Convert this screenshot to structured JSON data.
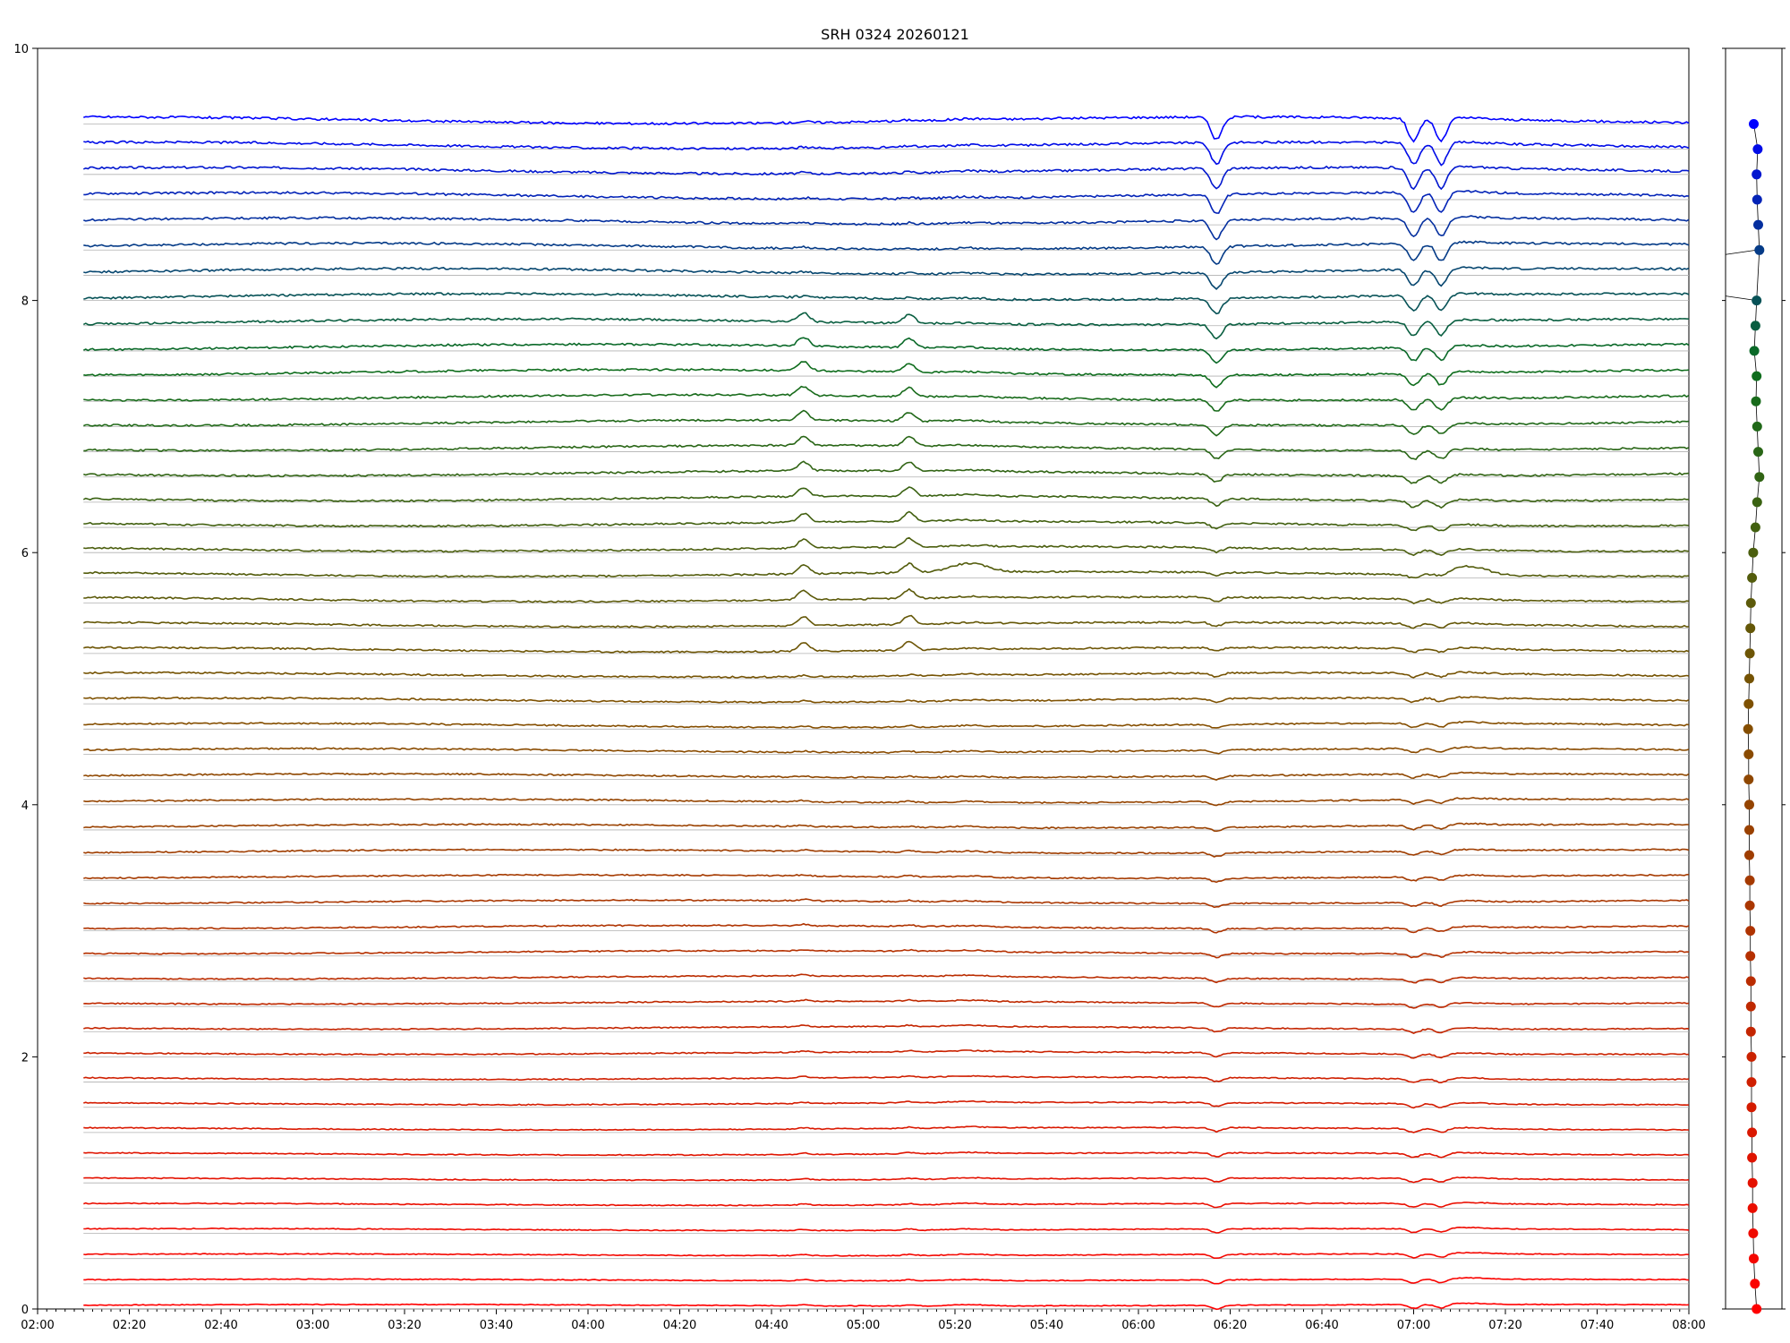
{
  "chart_data": [
    {
      "type": "line",
      "title": "SRH 0324 20260121",
      "xlabel": "",
      "ylabel": "",
      "xlim": [
        "02:00",
        "08:00"
      ],
      "ylim": [
        0,
        10
      ],
      "x_ticks": [
        "02:00",
        "02:20",
        "02:40",
        "03:00",
        "03:20",
        "03:40",
        "04:00",
        "04:20",
        "04:40",
        "05:00",
        "05:20",
        "05:40",
        "06:00",
        "06:20",
        "06:40",
        "07:00",
        "07:20",
        "07:40",
        "08:00"
      ],
      "y_ticks": [
        "0",
        "2",
        "4",
        "6",
        "8",
        "10"
      ],
      "grid": false,
      "legend": "none",
      "series_start": "02:10",
      "series_end": "08:00",
      "channel_count": 48,
      "channel_offsets": [
        0.0,
        0.2,
        0.4,
        0.6,
        0.8,
        1.0,
        1.2,
        1.4,
        1.6,
        1.8,
        2.0,
        2.2,
        2.4,
        2.6,
        2.8,
        3.0,
        3.2,
        3.4,
        3.6,
        3.8,
        4.0,
        4.2,
        4.4,
        4.6,
        4.8,
        5.0,
        5.2,
        5.4,
        5.6,
        5.8,
        6.0,
        6.2,
        6.4,
        6.6,
        6.8,
        7.0,
        7.2,
        7.4,
        7.6,
        7.8,
        8.0,
        8.2,
        8.4,
        8.6,
        8.8,
        9.0,
        9.2,
        9.4
      ],
      "color_low": "#ff0000",
      "color_high": "#0000ff",
      "baseline_color": "#b0b0b0",
      "events": [
        {
          "time": "04:47",
          "kind": "spike"
        },
        {
          "time": "05:10",
          "kind": "spike"
        },
        {
          "time": "05:23",
          "kind": "bump"
        },
        {
          "time": "06:17",
          "kind": "dip"
        },
        {
          "time": "07:00",
          "kind": "dip"
        },
        {
          "time": "07:06",
          "kind": "dip"
        },
        {
          "time": "07:12",
          "kind": "bump"
        }
      ]
    },
    {
      "type": "scatter",
      "title": "",
      "ylim": [
        0,
        10
      ],
      "y_ticks": [
        "0",
        "2",
        "4",
        "6",
        "8",
        "10"
      ],
      "points_y": [
        0.0,
        0.2,
        0.4,
        0.6,
        0.8,
        1.0,
        1.2,
        1.4,
        1.6,
        1.8,
        2.0,
        2.2,
        2.4,
        2.6,
        2.8,
        3.0,
        3.2,
        3.4,
        3.6,
        3.8,
        4.0,
        4.2,
        4.4,
        4.6,
        4.8,
        5.0,
        5.2,
        5.4,
        5.6,
        5.8,
        6.0,
        6.2,
        6.4,
        6.6,
        6.8,
        7.0,
        7.2,
        7.4,
        7.6,
        7.8,
        8.0,
        8.4,
        8.6,
        8.8,
        9.0,
        9.2,
        9.4
      ],
      "points_x": [
        0.55,
        0.52,
        0.5,
        0.49,
        0.48,
        0.48,
        0.47,
        0.47,
        0.46,
        0.46,
        0.46,
        0.45,
        0.45,
        0.45,
        0.44,
        0.44,
        0.43,
        0.43,
        0.42,
        0.42,
        0.42,
        0.41,
        0.41,
        0.4,
        0.41,
        0.42,
        0.43,
        0.44,
        0.45,
        0.47,
        0.49,
        0.53,
        0.56,
        0.6,
        0.58,
        0.56,
        0.54,
        0.55,
        0.51,
        0.53,
        0.55,
        0.6,
        0.58,
        0.56,
        0.55,
        0.57,
        0.5
      ],
      "connector_color": "#000000"
    }
  ]
}
